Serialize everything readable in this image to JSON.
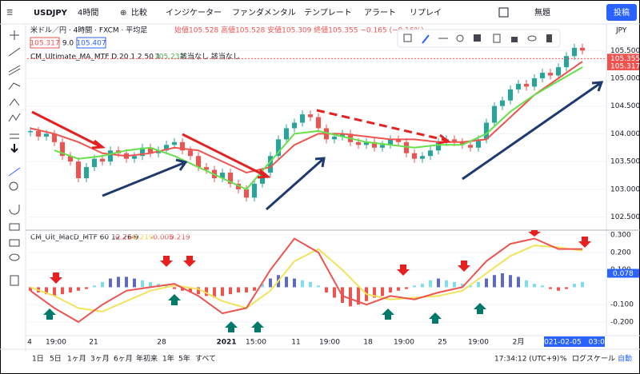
{
  "toolbar": {
    "symbol": "USDJPY",
    "interval": "4時間",
    "compare": "比較",
    "indicators": "インジケーター",
    "fundamentals": "ファンダメンタル",
    "templates": "テンプレート",
    "alert": "アラート",
    "replay": "リプレイ",
    "layout": "無題",
    "publish": "投稿"
  },
  "legend": {
    "symbol": "米ドル／円 · 4時間 · FXCM · 平均足",
    "ohlc": "始値105.528 高値105.528 安値105.309 終値105.355 −0.165 (−0.16%)",
    "bid": "105.317",
    "spread": "9.0",
    "ask": "105.407",
    "ma_name": "CM_Ultimate_MA_MTF D 20 1 2 50 1",
    "ma_value": "105.233",
    "ma_note": "該当なし 該当なし",
    "macd_name": "CM_Ult_MacD_MTF 60 12 26 9",
    "macd_values": [
      "0.214",
      "0.219",
      "-0.005",
      "0.219"
    ]
  },
  "price_pane": {
    "currency": "JPY",
    "ylim": [
      102.35,
      105.95
    ],
    "yticks": [
      {
        "value": 102.5,
        "label": "102.500"
      },
      {
        "value": 103,
        "label": "103.000"
      },
      {
        "value": 103.5,
        "label": "103.500"
      },
      {
        "value": 104,
        "label": "104.000"
      },
      {
        "value": 104.5,
        "label": "104.500"
      },
      {
        "value": 105,
        "label": "105.000"
      },
      {
        "value": 105.5,
        "label": "105.500"
      }
    ],
    "last": {
      "value": 105.355,
      "label": "105.355"
    },
    "bid_line": {
      "value": 105.317,
      "label": "105.317"
    },
    "closes": [
      104.05,
      103.95,
      104.0,
      103.85,
      103.6,
      103.5,
      103.2,
      103.4,
      103.55,
      103.5,
      103.7,
      103.65,
      103.55,
      103.6,
      103.75,
      103.65,
      103.7,
      103.8,
      103.85,
      103.7,
      103.6,
      103.4,
      103.35,
      103.2,
      103.3,
      103.1,
      103.0,
      102.85,
      103.1,
      103.3,
      103.6,
      103.9,
      104.1,
      104.2,
      104.35,
      104.3,
      104.1,
      103.9,
      103.95,
      104.0,
      103.85,
      103.8,
      103.85,
      103.75,
      103.8,
      103.9,
      103.85,
      103.65,
      103.55,
      103.6,
      103.7,
      103.85,
      103.9,
      103.85,
      103.8,
      103.75,
      103.9,
      104.2,
      104.5,
      104.6,
      104.8,
      104.9,
      104.85,
      105.0,
      105.1,
      105.05,
      105.2,
      105.4,
      105.55,
      105.5
    ],
    "ma_slow": [
      104.1,
      104.0,
      103.85,
      103.65,
      103.6,
      103.65,
      103.75,
      103.7,
      103.5,
      103.3,
      103.4,
      103.8,
      104.0,
      104.0,
      103.95,
      103.9,
      103.9,
      103.85,
      103.85,
      103.9,
      104.3,
      104.7,
      105.0,
      105.3
    ],
    "ma_fast": [
      null,
      103.7,
      103.55,
      103.6,
      103.7,
      103.75,
      103.6,
      103.4,
      103.2,
      103.0,
      103.5,
      104.0,
      104.05,
      103.95,
      103.85,
      103.8,
      103.75,
      103.8,
      103.8,
      104.0,
      104.4,
      104.7,
      104.95,
      105.2
    ]
  },
  "macd_pane": {
    "ylim": [
      -0.26,
      0.31
    ],
    "yticks": [
      {
        "value": -0.2,
        "label": "-0.200"
      },
      {
        "value": -0.1,
        "label": "-0.100"
      },
      {
        "value": 0.1,
        "label": "0.100"
      },
      {
        "value": 0.2,
        "label": "0.200"
      },
      {
        "value": 0.3,
        "label": "0.300"
      }
    ],
    "last": {
      "value": 0.078,
      "label": "0.078"
    },
    "histogram": [
      -0.02,
      -0.03,
      -0.04,
      -0.05,
      -0.04,
      -0.03,
      -0.02,
      -0.01,
      0.01,
      0.03,
      0.05,
      0.06,
      0.06,
      0.05,
      0.04,
      0.03,
      0.02,
      0.01,
      -0.01,
      -0.02,
      -0.03,
      -0.04,
      -0.05,
      -0.06,
      -0.05,
      -0.04,
      -0.03,
      -0.03,
      -0.02,
      0.02,
      0.05,
      0.07,
      0.06,
      0.05,
      0.04,
      0.03,
      0.01,
      -0.03,
      -0.06,
      -0.09,
      -0.11,
      -0.1,
      -0.08,
      -0.06,
      -0.05,
      -0.03,
      -0.02,
      -0.01,
      0.01,
      0.02,
      0.04,
      0.05,
      0.04,
      0.03,
      0.02,
      0.01,
      0.03,
      0.05,
      0.07,
      0.08,
      0.07,
      0.06,
      0.04,
      0.02,
      0.01,
      -0.01,
      -0.02,
      -0.01,
      0.02,
      0.03
    ],
    "macd": [
      -0.02,
      -0.12,
      -0.2,
      -0.1,
      -0.02,
      0.0,
      0.02,
      -0.05,
      -0.15,
      -0.12,
      0.1,
      0.28,
      0.2,
      -0.05,
      -0.1,
      -0.05,
      -0.07,
      -0.03,
      0.0,
      0.15,
      0.25,
      0.28,
      0.22,
      0.22
    ],
    "signal": [
      0.0,
      -0.05,
      -0.12,
      -0.14,
      -0.08,
      -0.02,
      0.01,
      -0.01,
      -0.08,
      -0.12,
      -0.02,
      0.15,
      0.22,
      0.1,
      -0.04,
      -0.07,
      -0.06,
      -0.05,
      -0.02,
      0.08,
      0.18,
      0.24,
      0.23,
      0.21
    ]
  },
  "time_axis": {
    "labels": [
      "4",
      "19:00",
      "21",
      "28",
      "2021",
      "15:00",
      "11",
      "19:00",
      "18",
      "19:00",
      "25",
      "19:00",
      "2月"
    ],
    "cursor": "2021-02-05　03:00"
  },
  "bottom_bar": {
    "ranges": [
      "1日",
      "5日",
      "1ヶ月",
      "3ヶ月",
      "6ヶ月",
      "年初来",
      "1年",
      "5年",
      "すべて"
    ],
    "clock": "17:34:12 (UTC+9)",
    "percent": "%",
    "log": "ログスケール",
    "auto": "自動"
  }
}
